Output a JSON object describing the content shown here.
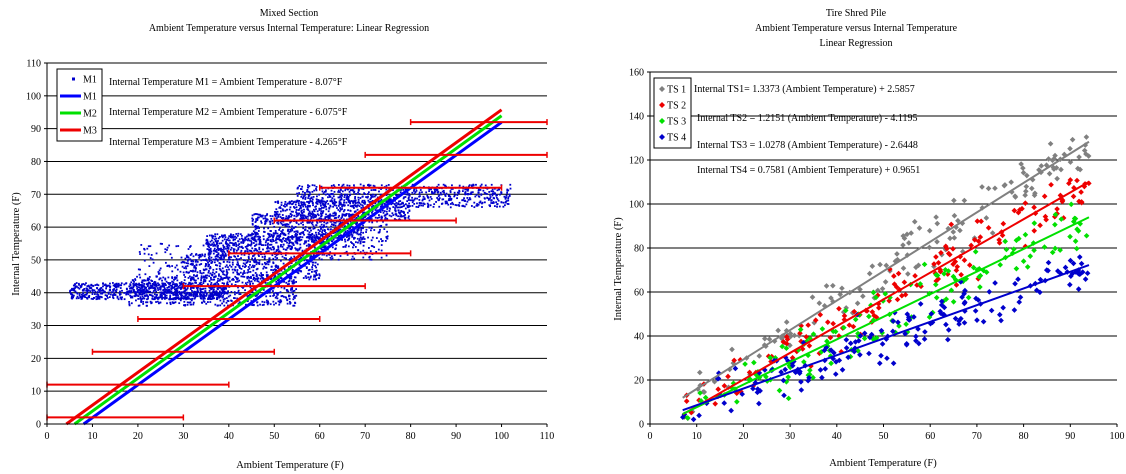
{
  "chart_data": [
    {
      "type": "scatter",
      "title": [
        "Mixed Section",
        "Ambient Temperature versus Internal Temperature:  Linear Regression"
      ],
      "xlabel": "Ambient Temperature (F)",
      "ylabel": "Internal Temperature (F)",
      "xlim": [
        0,
        110
      ],
      "ylim": [
        0,
        110
      ],
      "xticks": [
        0,
        10,
        20,
        30,
        40,
        50,
        60,
        70,
        80,
        90,
        100,
        110
      ],
      "yticks": [
        0,
        10,
        20,
        30,
        40,
        50,
        60,
        70,
        80,
        90,
        100,
        110
      ],
      "grid": "horizontal",
      "legend_position": "top-left",
      "legend": [
        {
          "label": "M1",
          "kind": "marker",
          "color": "#0000cc"
        },
        {
          "label": "M1",
          "kind": "line",
          "color": "#0000ff"
        },
        {
          "label": "M2",
          "kind": "line",
          "color": "#00e000"
        },
        {
          "label": "M3",
          "kind": "line",
          "color": "#ee0000"
        }
      ],
      "equations": [
        "Internal Temperature M1 = Ambient Temperature - 8.07°F",
        "Internal Temperature M2 = Ambient Temperature - 6.075°F",
        "Internal Temperature M3 = Ambient Temperature - 4.265°F"
      ],
      "series": [
        {
          "name": "M1",
          "mode": "points",
          "color": "#0000cc",
          "clusters": [
            {
              "x": [
                5,
                40
              ],
              "y": [
                38,
                43
              ],
              "n": 700
            },
            {
              "x": [
                18,
                55
              ],
              "y": [
                36,
                45
              ],
              "n": 600
            },
            {
              "x": [
                30,
                60
              ],
              "y": [
                44,
                52
              ],
              "n": 500
            },
            {
              "x": [
                35,
                62
              ],
              "y": [
                52,
                58
              ],
              "n": 500
            },
            {
              "x": [
                45,
                70
              ],
              "y": [
                56,
                64
              ],
              "n": 450
            },
            {
              "x": [
                50,
                80
              ],
              "y": [
                62,
                68
              ],
              "n": 450
            },
            {
              "x": [
                55,
                102
              ],
              "y": [
                66,
                73
              ],
              "n": 700
            },
            {
              "x": [
                60,
                75
              ],
              "y": [
                50,
                62
              ],
              "n": 200
            },
            {
              "x": [
                20,
                40
              ],
              "y": [
                44,
                55
              ],
              "n": 120
            }
          ]
        },
        {
          "name": "M1",
          "mode": "line",
          "color": "#0000ff",
          "x": [
            8.07,
            100
          ],
          "y": [
            0,
            91.93
          ]
        },
        {
          "name": "M2",
          "mode": "line",
          "color": "#00e000",
          "x": [
            6.075,
            100
          ],
          "y": [
            0,
            93.925
          ]
        },
        {
          "name": "M3",
          "mode": "line",
          "color": "#ee0000",
          "x": [
            4.265,
            100
          ],
          "y": [
            0,
            95.735
          ]
        }
      ],
      "interval_bars": {
        "color": "#ee0000",
        "bars": [
          {
            "y": 2,
            "x": [
              0,
              30
            ]
          },
          {
            "y": 12,
            "x": [
              0,
              40
            ]
          },
          {
            "y": 22,
            "x": [
              10,
              50
            ]
          },
          {
            "y": 32,
            "x": [
              20,
              60
            ]
          },
          {
            "y": 42,
            "x": [
              30,
              70
            ]
          },
          {
            "y": 52,
            "x": [
              40,
              80
            ]
          },
          {
            "y": 62,
            "x": [
              50,
              90
            ]
          },
          {
            "y": 72,
            "x": [
              60,
              100
            ]
          },
          {
            "y": 82,
            "x": [
              70,
              110
            ]
          },
          {
            "y": 92,
            "x": [
              80,
              110
            ]
          }
        ]
      }
    },
    {
      "type": "scatter",
      "title": [
        "Tire Shred Pile",
        "Ambient Temperature versus Internal Temperature",
        "Linear Regression"
      ],
      "xlabel": "Ambient Temperature (F)",
      "ylabel": "Internal Temperature (F)",
      "xlim": [
        0,
        100
      ],
      "ylim": [
        0,
        160
      ],
      "xticks": [
        0,
        10,
        20,
        30,
        40,
        50,
        60,
        70,
        80,
        90,
        100
      ],
      "yticks": [
        0,
        20,
        40,
        60,
        80,
        100,
        120,
        140,
        160
      ],
      "grid": "horizontal",
      "legend_position": "top-left",
      "legend": [
        {
          "label": "TS 1",
          "color": "#808080"
        },
        {
          "label": "TS 2",
          "color": "#ee0000"
        },
        {
          "label": "TS 3",
          "color": "#00e000"
        },
        {
          "label": "TS 4",
          "color": "#0000cc"
        }
      ],
      "equations": [
        "Internal TS1= 1.3373 (Ambient Temperature) + 2.5857",
        "Internal TS2 = 1.2151 (Ambient Temperature) - 4.1195",
        "Internal TS3 = 1.0278 (Ambient Temperature) - 2.6448",
        "Internal TS4 = 0.7581 (Ambient Temperature) + 0.9651"
      ],
      "series": [
        {
          "name": "TS 1",
          "color": "#808080",
          "slope": 1.3373,
          "intercept": 2.5857,
          "n": 150
        },
        {
          "name": "TS 2",
          "color": "#ee0000",
          "slope": 1.2151,
          "intercept": -4.1195,
          "n": 150
        },
        {
          "name": "TS 3",
          "color": "#00e000",
          "slope": 1.0278,
          "intercept": -2.6448,
          "n": 150
        },
        {
          "name": "TS 4",
          "color": "#0000cc",
          "slope": 0.7581,
          "intercept": 0.9651,
          "n": 170
        }
      ],
      "fit_range": [
        7,
        94
      ]
    }
  ]
}
